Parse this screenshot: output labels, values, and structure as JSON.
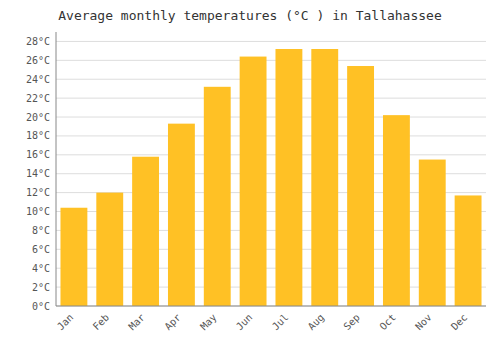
{
  "chart_data": {
    "type": "bar",
    "title": "Average monthly temperatures (°C ) in Tallahassee",
    "categories": [
      "Jan",
      "Feb",
      "Mar",
      "Apr",
      "May",
      "Jun",
      "Jul",
      "Aug",
      "Sep",
      "Oct",
      "Nov",
      "Dec"
    ],
    "values": [
      10.4,
      12.0,
      15.8,
      19.3,
      23.2,
      26.4,
      27.2,
      27.2,
      25.4,
      20.2,
      15.5,
      11.7
    ],
    "color": "#FFC125",
    "ylim": [
      0,
      29
    ],
    "yticks": [
      {
        "value": 0,
        "label": "0°C"
      },
      {
        "value": 2,
        "label": "2°C"
      },
      {
        "value": 4,
        "label": "4°C"
      },
      {
        "value": 6,
        "label": "6°C"
      },
      {
        "value": 8,
        "label": "8°C"
      },
      {
        "value": 10,
        "label": "10°C"
      },
      {
        "value": 12,
        "label": "12°C"
      },
      {
        "value": 14,
        "label": "14°C"
      },
      {
        "value": 16,
        "label": "16°C"
      },
      {
        "value": 18,
        "label": "18°C"
      },
      {
        "value": 20,
        "label": "20°C"
      },
      {
        "value": 22,
        "label": "22°C"
      },
      {
        "value": 24,
        "label": "24°C"
      },
      {
        "value": 26,
        "label": "26°C"
      },
      {
        "value": 28,
        "label": "28°C"
      }
    ],
    "grid": true
  }
}
